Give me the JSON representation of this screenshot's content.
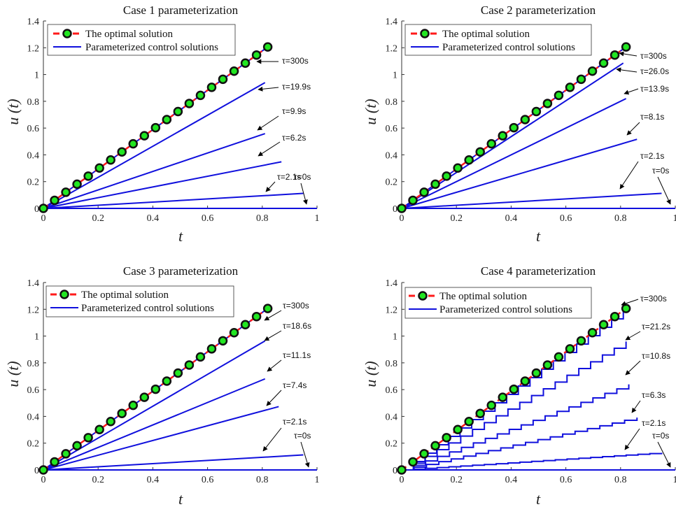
{
  "chart_data": [
    {
      "type": "line",
      "title": "Case 1 parameterization",
      "xlabel": "t",
      "ylabel": "u (t)",
      "xlim": [
        0,
        1
      ],
      "ylim": [
        0,
        1.4
      ],
      "xticks": [
        "0",
        "0.2",
        "0.4",
        "0.6",
        "0.8",
        "1"
      ],
      "yticks": [
        "0",
        "0.2",
        "0.4",
        "0.6",
        "0.8",
        "1",
        "1.2",
        "1.4"
      ],
      "legend": [
        "The optimal solution",
        "Parameterized control solutions"
      ],
      "optimal": {
        "slope": 1.4706,
        "x_end": 0.82,
        "markers": 21
      },
      "controls": [
        {
          "label": "τ=300s",
          "slope": 1.4706,
          "x_end": 0.81,
          "steps": 0
        },
        {
          "label": "τ=19.9s",
          "slope": 1.16,
          "x_end": 0.81,
          "steps": 0
        },
        {
          "label": "τ=9.9s",
          "slope": 0.69,
          "x_end": 0.81,
          "steps": 0
        },
        {
          "label": "τ=6.2s",
          "slope": 0.4,
          "x_end": 0.87,
          "steps": 0
        },
        {
          "label": "τ=2.1s",
          "slope": 0.118,
          "x_end": 0.95,
          "steps": 0
        },
        {
          "label": "τ=0s",
          "slope": 0,
          "x_end": 1.0,
          "steps": 0
        }
      ]
    },
    {
      "type": "line",
      "title": "Case 2 parameterization",
      "xlabel": "t",
      "ylabel": "u (t)",
      "xlim": [
        0,
        1
      ],
      "ylim": [
        0,
        1.4
      ],
      "xticks": [
        "0",
        "0.2",
        "0.4",
        "0.6",
        "0.8",
        "1"
      ],
      "yticks": [
        "0",
        "0.2",
        "0.4",
        "0.6",
        "0.8",
        "1",
        "1.2",
        "1.4"
      ],
      "legend": [
        "The optimal solution",
        "Parameterized control solutions"
      ],
      "optimal": {
        "slope": 1.4706,
        "x_end": 0.82,
        "markers": 21
      },
      "controls": [
        {
          "label": "τ=300s",
          "slope": 1.4706,
          "x_end": 0.81,
          "steps": 0
        },
        {
          "label": "τ=26.0s",
          "slope": 1.34,
          "x_end": 0.81,
          "steps": 0
        },
        {
          "label": "τ=13.9s",
          "slope": 1.0,
          "x_end": 0.82,
          "steps": 0
        },
        {
          "label": "τ=8.1s",
          "slope": 0.6,
          "x_end": 0.86,
          "steps": 0
        },
        {
          "label": "τ=2.1s",
          "slope": 0.118,
          "x_end": 0.95,
          "steps": 0
        },
        {
          "label": "τ=0s",
          "slope": 0,
          "x_end": 1.0,
          "steps": 0
        }
      ]
    },
    {
      "type": "line",
      "title": "Case 3 parameterization",
      "xlabel": "t",
      "ylabel": "u (t)",
      "xlim": [
        0,
        1
      ],
      "ylim": [
        0,
        1.4
      ],
      "xticks": [
        "0",
        "0.2",
        "0.4",
        "0.6",
        "0.8",
        "1"
      ],
      "yticks": [
        "0",
        "0.2",
        "0.4",
        "0.6",
        "0.8",
        "1",
        "1.2",
        "1.4"
      ],
      "legend": [
        "The optimal solution",
        "Parameterized control solutions"
      ],
      "optimal": {
        "slope": 1.4706,
        "x_end": 0.82,
        "markers": 21
      },
      "controls": [
        {
          "label": "τ=300s",
          "slope": 1.4706,
          "x_end": 0.81,
          "steps": 0
        },
        {
          "label": "τ=18.6s",
          "slope": 1.19,
          "x_end": 0.81,
          "steps": 0
        },
        {
          "label": "τ=11.1s",
          "slope": 0.84,
          "x_end": 0.81,
          "steps": 0
        },
        {
          "label": "τ=7.4s",
          "slope": 0.55,
          "x_end": 0.86,
          "steps": 0
        },
        {
          "label": "τ=2.1s",
          "slope": 0.118,
          "x_end": 0.95,
          "steps": 0
        },
        {
          "label": "τ=0s",
          "slope": 0,
          "x_end": 1.0,
          "steps": 0
        }
      ]
    },
    {
      "type": "line",
      "title": "Case 4 parameterization",
      "xlabel": "t",
      "ylabel": "u (t)",
      "xlim": [
        0,
        1
      ],
      "ylim": [
        0,
        1.4
      ],
      "xticks": [
        "0",
        "0.2",
        "0.4",
        "0.6",
        "0.8",
        "1"
      ],
      "yticks": [
        "0",
        "0.2",
        "0.4",
        "0.6",
        "0.8",
        "1",
        "1.2",
        "1.4"
      ],
      "legend": [
        "The optimal solution",
        "Parameterized control solutions"
      ],
      "optimal": {
        "slope": 1.4706,
        "x_end": 0.82,
        "markers": 21
      },
      "controls": [
        {
          "label": "τ=300s",
          "slope": 1.4706,
          "x_end": 0.81,
          "steps": 19
        },
        {
          "label": "τ=21.2s",
          "slope": 1.17,
          "x_end": 0.82,
          "steps": 19
        },
        {
          "label": "τ=10.8s",
          "slope": 0.77,
          "x_end": 0.83,
          "steps": 19
        },
        {
          "label": "τ=6.3s",
          "slope": 0.455,
          "x_end": 0.86,
          "steps": 19
        },
        {
          "label": "τ=2.1s",
          "slope": 0.135,
          "x_end": 0.95,
          "steps": 22
        },
        {
          "label": "τ=0s",
          "slope": 0,
          "x_end": 1.0,
          "steps": 0
        }
      ]
    }
  ]
}
